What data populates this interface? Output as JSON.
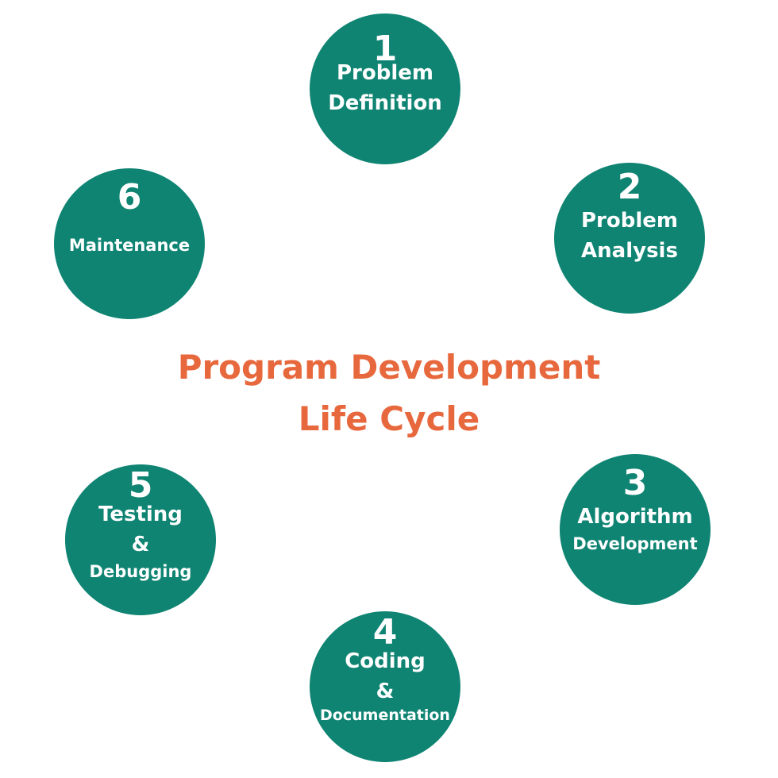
{
  "title": {
    "line1": "Program Development",
    "line2": "Life Cycle"
  },
  "steps": [
    {
      "number": "1",
      "label_lines": [
        "Problem",
        "Definition"
      ]
    },
    {
      "number": "2",
      "label_lines": [
        "Problem",
        "Analysis"
      ]
    },
    {
      "number": "3",
      "label_lines": [
        "Algorithm",
        "Development"
      ]
    },
    {
      "number": "4",
      "label_lines": [
        "Coding",
        "&",
        "Documentation"
      ]
    },
    {
      "number": "5",
      "label_lines": [
        "Testing",
        "&",
        "Debugging"
      ]
    },
    {
      "number": "6",
      "label_lines": [
        "Maintenance"
      ]
    }
  ],
  "colors": {
    "circle": "#0f8473",
    "step_text": "#ffffff",
    "title": "#e8683e"
  }
}
